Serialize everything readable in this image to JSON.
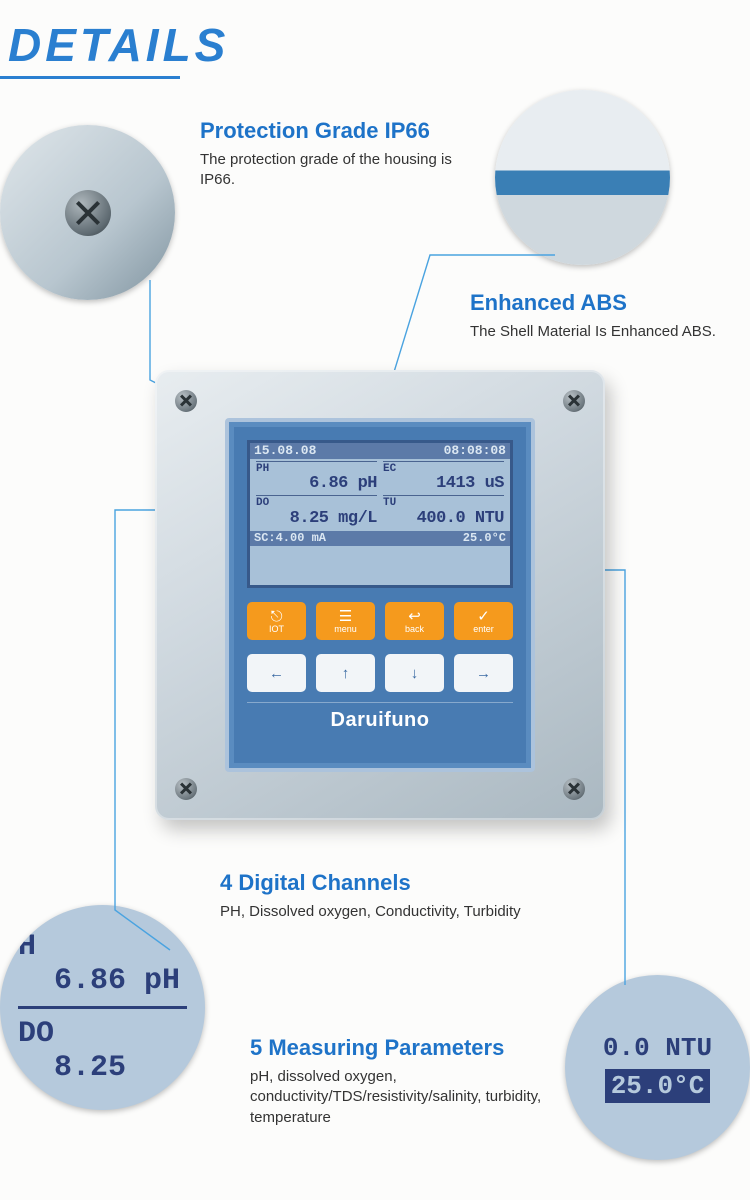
{
  "page": {
    "heading": "DETAILS"
  },
  "colors": {
    "accent": "#2a7fd0",
    "leader": "#4aa3e0",
    "dot": "#2a9df4",
    "button_orange": "#f59a1d",
    "faceplate_blue": "#487bb2",
    "lcd_bg": "#a8c1d8",
    "lcd_text": "#2c3f7a"
  },
  "callouts": {
    "ip66": {
      "title": "Protection Grade IP66",
      "body": "The protection grade of the housing is IP66."
    },
    "abs": {
      "title": "Enhanced ABS",
      "body": "The Shell Material Is Enhanced ABS."
    },
    "channels": {
      "title": "4 Digital Channels",
      "body": "PH, Dissolved oxygen, Conductivity, Turbidity"
    },
    "params": {
      "title": "5 Measuring Parameters",
      "body": "pH, dissolved oxygen, conductivity/TDS/resistivity/salinity, turbidity, temperature"
    }
  },
  "device": {
    "brand": "Daruifuno",
    "lcd": {
      "date": "15.08.08",
      "time": "08:08:08",
      "ph_label": "PH",
      "ph_value": "6.86 pH",
      "ec_label": "EC",
      "ec_value": "1413 uS",
      "do_label": "DO",
      "do_value": "8.25 mg/L",
      "tu_label": "TU",
      "tu_value": "400.0 NTU",
      "footer_left": "SC:4.00 mA",
      "footer_right": "25.0°C"
    },
    "buttons_row1": [
      {
        "glyph": "⎋",
        "label": "IOT"
      },
      {
        "glyph": "☰",
        "label": "menu"
      },
      {
        "glyph": "↩",
        "label": "back"
      },
      {
        "glyph": "✓",
        "label": "enter"
      }
    ],
    "buttons_row2": [
      {
        "glyph": "←"
      },
      {
        "glyph": "↑"
      },
      {
        "glyph": "↓"
      },
      {
        "glyph": "→"
      }
    ]
  },
  "zoom_left": {
    "line1": "H",
    "line2": "  6.86 pH",
    "line3": "DO",
    "line4": "  8.25 "
  },
  "zoom_right": {
    "line1": "0.0 NTU",
    "line2": "25.0°C"
  }
}
